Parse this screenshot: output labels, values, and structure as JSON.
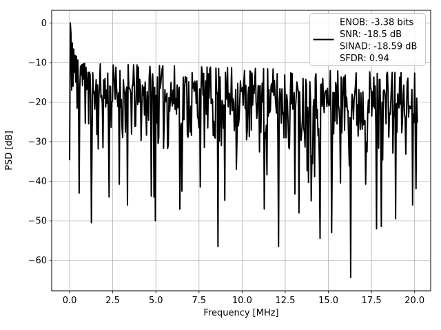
{
  "chart_data": {
    "type": "line",
    "title": "",
    "xlabel": "Frequency [MHz]",
    "ylabel": "PSD [dB]",
    "xlim": [
      -1.04,
      20.93
    ],
    "ylim": [
      -67.7,
      3.2
    ],
    "xticks": [
      0,
      2.5,
      5,
      7.5,
      10,
      12.5,
      15,
      17.5,
      20
    ],
    "xtick_labels": [
      "0.0",
      "2.5",
      "5.0",
      "7.5",
      "10.0",
      "12.5",
      "15.0",
      "17.5",
      "20.0"
    ],
    "yticks": [
      0,
      -10,
      -20,
      -30,
      -40,
      -50,
      -60
    ],
    "ytick_labels": [
      "0",
      "−10",
      "−20",
      "−30",
      "−40",
      "−50",
      "−60"
    ],
    "grid": true,
    "grid_color": "#b0b0b0",
    "background_color": "#ffffff",
    "line_color": "#000000",
    "line_width": 2,
    "legend": {
      "position": "upper right",
      "bg_color": "#ffffff",
      "bg_opacity": 0.85,
      "border_color": "#cccccc",
      "lines": [
        "ENOB: -3.38 bits",
        "SNR: -18.5 dB",
        "SINAD: -18.59 dB",
        "SFDR: 0.94"
      ]
    },
    "metrics": {
      "enob_bits": -3.38,
      "snr_db": -18.5,
      "sinad_db": -18.59,
      "sfdr": 0.94
    },
    "series": [
      {
        "name": "psd",
        "description": "PSD of noisy capture: carrier peak reaching 0 dB at ~0 MHz with skirt decaying to -11 dB by 1 MHz; dense noise band whose top envelope slopes from about -10.5 dB to -13.5 dB across 0-20.2 MHz with solid core down to about -30 dB and sparse deep nulls, deepest about -64 dB near 16.3 MHz",
        "generator": {
          "n_points": 512,
          "f_max_mhz": 20.16,
          "seed": 11,
          "distribution": "noise_floor + tail_scale*log10(exponential_random)",
          "noise_floor_db_at_0": -15.6,
          "noise_floor_db_at_fmax": -18.2,
          "tail_scale": 12,
          "top_clip_offset_db": 5.5,
          "natural_clip_min_db": -52,
          "first_bin": {
            "f_mhz": 0.0,
            "db": -34.7
          },
          "carrier_peak": {
            "f_mhz": 0.04,
            "db": 0.0
          },
          "carrier_skirt": [
            [
              0.04,
              0.0
            ],
            [
              0.08,
              -1.5
            ],
            [
              0.12,
              -3.0
            ],
            [
              0.16,
              -4.3
            ],
            [
              0.2,
              -5.2
            ],
            [
              0.3,
              -7.0
            ],
            [
              0.4,
              -8.2
            ],
            [
              0.5,
              -9.0
            ],
            [
              0.7,
              -10.0
            ],
            [
              1.0,
              -10.8
            ]
          ],
          "deep_nulls": [
            [
              0.57,
              -43.0
            ],
            [
              1.27,
              -50.5
            ],
            [
              2.3,
              -44.0
            ],
            [
              3.35,
              -46.0
            ],
            [
              4.9,
              -44.0
            ],
            [
              6.5,
              -42.5
            ],
            [
              8.62,
              -56.5
            ],
            [
              9.0,
              -44.8
            ],
            [
              11.3,
              -47.0
            ],
            [
              12.1,
              -56.5
            ],
            [
              13.3,
              -48.0
            ],
            [
              14.5,
              -54.5
            ],
            [
              15.2,
              -53.0
            ],
            [
              16.3,
              -64.3
            ],
            [
              17.8,
              -52.0
            ],
            [
              18.9,
              -49.5
            ],
            [
              19.9,
              -46.0
            ]
          ]
        }
      }
    ]
  }
}
